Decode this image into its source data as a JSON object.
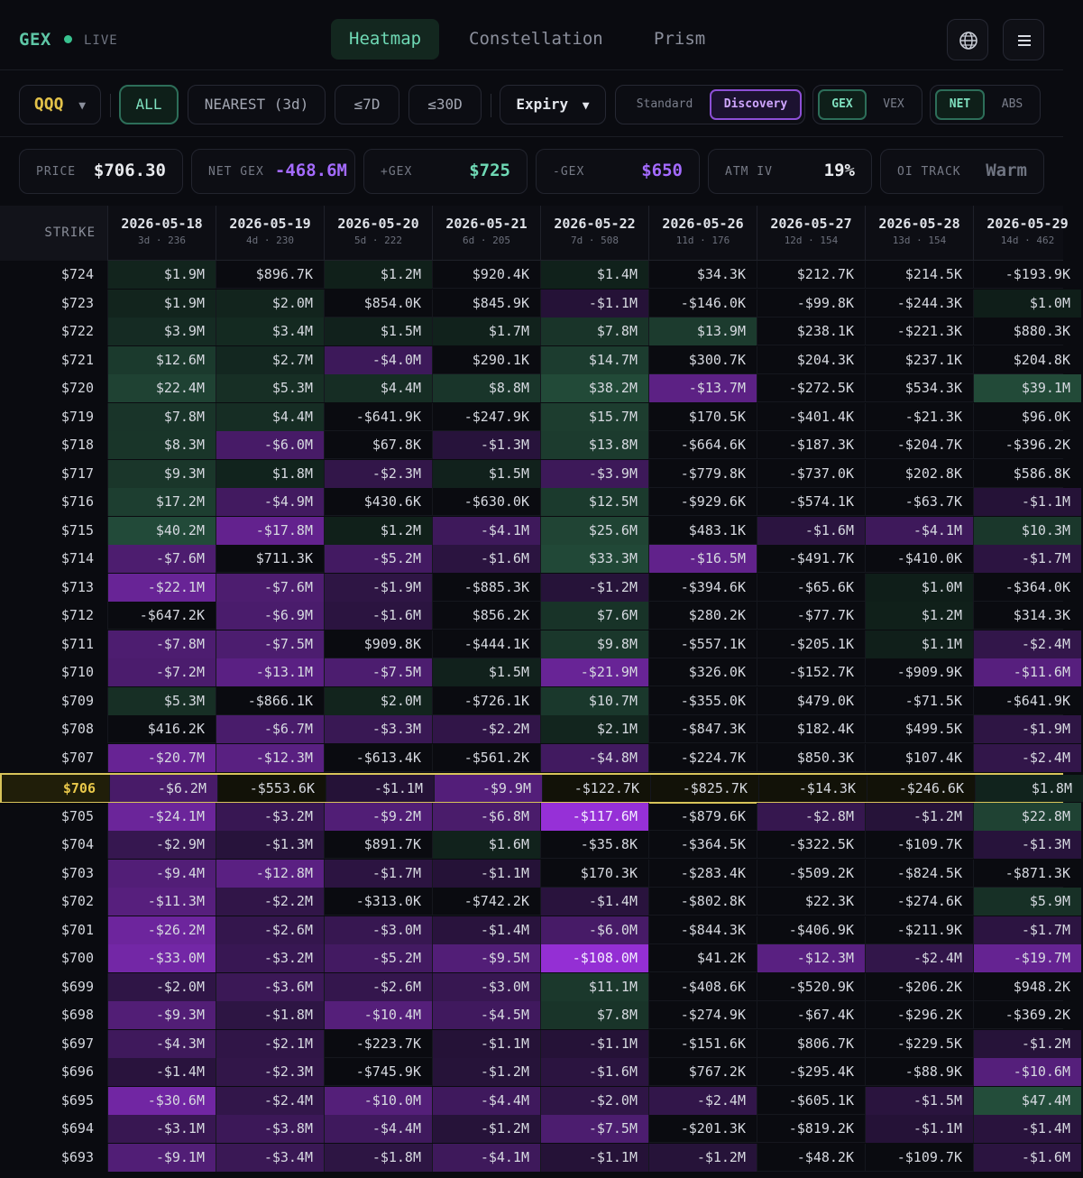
{
  "header": {
    "brand": "GEX",
    "live": "LIVE",
    "tabs": [
      "Heatmap",
      "Constellation",
      "Prism"
    ],
    "active_tab": "Heatmap"
  },
  "filters": {
    "symbol": "QQQ",
    "all": "ALL",
    "nearest": "NEAREST (3d)",
    "le7": "≤7D",
    "le30": "≤30D",
    "expiry": "Expiry",
    "mode": [
      "Standard",
      "Discovery"
    ],
    "metric": [
      "GEX",
      "VEX"
    ],
    "agg": [
      "NET",
      "ABS"
    ]
  },
  "stats": {
    "price_label": "PRICE",
    "price": "$706.30",
    "netgex_label": "NET GEX",
    "netgex": "-468.6M",
    "posgex_label": "+GEX",
    "posgex": "$725",
    "neggex_label": "-GEX",
    "neggex": "$650",
    "atmiv_label": "ATM IV",
    "atmiv": "19%",
    "oitrack_label": "OI TRACK",
    "oitrack": "Warm"
  },
  "colors": {
    "accent_green": "#5ec6a6",
    "accent_purple": "#a46bff",
    "highlight_row": "#d8c45a"
  },
  "table": {
    "strike_header": "STRIKE",
    "current_strike": "$706",
    "columns": [
      {
        "date": "2026-05-18",
        "sub": "3d · 236"
      },
      {
        "date": "2026-05-19",
        "sub": "4d · 230"
      },
      {
        "date": "2026-05-20",
        "sub": "5d · 222"
      },
      {
        "date": "2026-05-21",
        "sub": "6d · 205"
      },
      {
        "date": "2026-05-22",
        "sub": "7d · 508"
      },
      {
        "date": "2026-05-26",
        "sub": "11d · 176"
      },
      {
        "date": "2026-05-27",
        "sub": "12d · 154"
      },
      {
        "date": "2026-05-28",
        "sub": "13d · 154"
      },
      {
        "date": "2026-05-29",
        "sub": "14d · 462"
      }
    ],
    "rows": [
      {
        "strike": "$724",
        "cells": [
          "$1.9M",
          "$896.7K",
          "$1.2M",
          "$920.4K",
          "$1.4M",
          "$34.3K",
          "$212.7K",
          "$214.5K",
          "-$193.9K"
        ]
      },
      {
        "strike": "$723",
        "cells": [
          "$1.9M",
          "$2.0M",
          "$854.0K",
          "$845.9K",
          "-$1.1M",
          "-$146.0K",
          "-$99.8K",
          "-$244.3K",
          "$1.0M"
        ]
      },
      {
        "strike": "$722",
        "cells": [
          "$3.9M",
          "$3.4M",
          "$1.5M",
          "$1.7M",
          "$7.8M",
          "$13.9M",
          "$238.1K",
          "-$221.3K",
          "$880.3K"
        ]
      },
      {
        "strike": "$721",
        "cells": [
          "$12.6M",
          "$2.7M",
          "-$4.0M",
          "$290.1K",
          "$14.7M",
          "$300.7K",
          "$204.3K",
          "$237.1K",
          "$204.8K"
        ]
      },
      {
        "strike": "$720",
        "cells": [
          "$22.4M",
          "$5.3M",
          "$4.4M",
          "$8.8M",
          "$38.2M",
          "-$13.7M",
          "-$272.5K",
          "$534.3K",
          "$39.1M"
        ]
      },
      {
        "strike": "$719",
        "cells": [
          "$7.8M",
          "$4.4M",
          "-$641.9K",
          "-$247.9K",
          "$15.7M",
          "$170.5K",
          "-$401.4K",
          "-$21.3K",
          "$96.0K"
        ]
      },
      {
        "strike": "$718",
        "cells": [
          "$8.3M",
          "-$6.0M",
          "$67.8K",
          "-$1.3M",
          "$13.8M",
          "-$664.6K",
          "-$187.3K",
          "-$204.7K",
          "-$396.2K"
        ]
      },
      {
        "strike": "$717",
        "cells": [
          "$9.3M",
          "$1.8M",
          "-$2.3M",
          "$1.5M",
          "-$3.9M",
          "-$779.8K",
          "-$737.0K",
          "$202.8K",
          "$586.8K"
        ]
      },
      {
        "strike": "$716",
        "cells": [
          "$17.2M",
          "-$4.9M",
          "$430.6K",
          "-$630.0K",
          "$12.5M",
          "-$929.6K",
          "-$574.1K",
          "-$63.7K",
          "-$1.1M"
        ]
      },
      {
        "strike": "$715",
        "cells": [
          "$40.2M",
          "-$17.8M",
          "$1.2M",
          "-$4.1M",
          "$25.6M",
          "$483.1K",
          "-$1.6M",
          "-$4.1M",
          "$10.3M"
        ]
      },
      {
        "strike": "$714",
        "cells": [
          "-$7.6M",
          "$711.3K",
          "-$5.2M",
          "-$1.6M",
          "$33.3M",
          "-$16.5M",
          "-$491.7K",
          "-$410.0K",
          "-$1.7M"
        ]
      },
      {
        "strike": "$713",
        "cells": [
          "-$22.1M",
          "-$7.6M",
          "-$1.9M",
          "-$885.3K",
          "-$1.2M",
          "-$394.6K",
          "-$65.6K",
          "$1.0M",
          "-$364.0K"
        ]
      },
      {
        "strike": "$712",
        "cells": [
          "-$647.2K",
          "-$6.9M",
          "-$1.6M",
          "$856.2K",
          "$7.6M",
          "$280.2K",
          "-$77.7K",
          "$1.2M",
          "$314.3K"
        ]
      },
      {
        "strike": "$711",
        "cells": [
          "-$7.8M",
          "-$7.5M",
          "$909.8K",
          "-$444.1K",
          "$9.8M",
          "-$557.1K",
          "-$205.1K",
          "$1.1M",
          "-$2.4M"
        ]
      },
      {
        "strike": "$710",
        "cells": [
          "-$7.2M",
          "-$13.1M",
          "-$7.5M",
          "$1.5M",
          "-$21.9M",
          "$326.0K",
          "-$152.7K",
          "-$909.9K",
          "-$11.6M"
        ]
      },
      {
        "strike": "$709",
        "cells": [
          "$5.3M",
          "-$866.1K",
          "$2.0M",
          "-$726.1K",
          "$10.7M",
          "-$355.0K",
          "$479.0K",
          "-$71.5K",
          "-$641.9K"
        ]
      },
      {
        "strike": "$708",
        "cells": [
          "$416.2K",
          "-$6.7M",
          "-$3.3M",
          "-$2.2M",
          "$2.1M",
          "-$847.3K",
          "$182.4K",
          "$499.5K",
          "-$1.9M"
        ]
      },
      {
        "strike": "$707",
        "cells": [
          "-$20.7M",
          "-$12.3M",
          "-$613.4K",
          "-$561.2K",
          "-$4.8M",
          "-$224.7K",
          "$850.3K",
          "$107.4K",
          "-$2.4M"
        ]
      },
      {
        "strike": "$706",
        "cells": [
          "-$6.2M",
          "-$553.6K",
          "-$1.1M",
          "-$9.9M",
          "-$122.7K",
          "-$825.7K",
          "-$14.3K",
          "-$246.6K",
          "$1.8M"
        ]
      },
      {
        "strike": "$705",
        "cells": [
          "-$24.1M",
          "-$3.2M",
          "-$9.2M",
          "-$6.8M",
          "-$117.6M",
          "-$879.6K",
          "-$2.8M",
          "-$1.2M",
          "$22.8M"
        ]
      },
      {
        "strike": "$704",
        "cells": [
          "-$2.9M",
          "-$1.3M",
          "$891.7K",
          "$1.6M",
          "-$35.8K",
          "-$364.5K",
          "-$322.5K",
          "-$109.7K",
          "-$1.3M"
        ]
      },
      {
        "strike": "$703",
        "cells": [
          "-$9.4M",
          "-$12.8M",
          "-$1.7M",
          "-$1.1M",
          "$170.3K",
          "-$283.4K",
          "-$509.2K",
          "-$824.5K",
          "-$871.3K"
        ]
      },
      {
        "strike": "$702",
        "cells": [
          "-$11.3M",
          "-$2.2M",
          "-$313.0K",
          "-$742.2K",
          "-$1.4M",
          "-$802.8K",
          "$22.3K",
          "-$274.6K",
          "$5.9M"
        ]
      },
      {
        "strike": "$701",
        "cells": [
          "-$26.2M",
          "-$2.6M",
          "-$3.0M",
          "-$1.4M",
          "-$6.0M",
          "-$844.3K",
          "-$406.9K",
          "-$211.9K",
          "-$1.7M"
        ]
      },
      {
        "strike": "$700",
        "cells": [
          "-$33.0M",
          "-$3.2M",
          "-$5.2M",
          "-$9.5M",
          "-$108.0M",
          "$41.2K",
          "-$12.3M",
          "-$2.4M",
          "-$19.7M"
        ]
      },
      {
        "strike": "$699",
        "cells": [
          "-$2.0M",
          "-$3.6M",
          "-$2.6M",
          "-$3.0M",
          "$11.1M",
          "-$408.6K",
          "-$520.9K",
          "-$206.2K",
          "$948.2K"
        ]
      },
      {
        "strike": "$698",
        "cells": [
          "-$9.3M",
          "-$1.8M",
          "-$10.4M",
          "-$4.5M",
          "$7.8M",
          "-$274.9K",
          "-$67.4K",
          "-$296.2K",
          "-$369.2K"
        ]
      },
      {
        "strike": "$697",
        "cells": [
          "-$4.3M",
          "-$2.1M",
          "-$223.7K",
          "-$1.1M",
          "-$1.1M",
          "-$151.6K",
          "$806.7K",
          "-$229.5K",
          "-$1.2M"
        ]
      },
      {
        "strike": "$696",
        "cells": [
          "-$1.4M",
          "-$2.3M",
          "-$745.9K",
          "-$1.2M",
          "-$1.6M",
          "$767.2K",
          "-$295.4K",
          "-$88.9K",
          "-$10.6M"
        ]
      },
      {
        "strike": "$695",
        "cells": [
          "-$30.6M",
          "-$2.4M",
          "-$10.0M",
          "-$4.4M",
          "-$2.0M",
          "-$2.4M",
          "-$605.1K",
          "-$1.5M",
          "$47.4M"
        ]
      },
      {
        "strike": "$694",
        "cells": [
          "-$3.1M",
          "-$3.8M",
          "-$4.4M",
          "-$1.2M",
          "-$7.5M",
          "-$201.3K",
          "-$819.2K",
          "-$1.1M",
          "-$1.4M"
        ]
      },
      {
        "strike": "$693",
        "cells": [
          "-$9.1M",
          "-$3.4M",
          "-$1.8M",
          "-$4.1M",
          "-$1.1M",
          "-$1.2M",
          "-$48.2K",
          "-$109.7K",
          "-$1.6M"
        ]
      }
    ]
  }
}
